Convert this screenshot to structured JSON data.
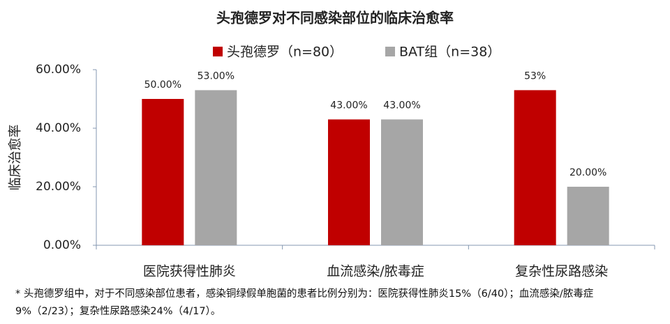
{
  "chart_data": {
    "type": "bar",
    "title": "头孢德罗对不同感染部位的临床治愈率",
    "ylabel": "临床治愈率",
    "categories": [
      "医院获得性肺炎",
      "血流感染/脓毒症",
      "复杂性尿路感染"
    ],
    "series": [
      {
        "name": "头孢德罗（n=80）",
        "color": "#c00000",
        "values": [
          50,
          43,
          53
        ],
        "value_labels": [
          "50.00%",
          "43.00%",
          "53%"
        ]
      },
      {
        "name": "BAT组（n=38）",
        "color": "#a6a6a6",
        "values": [
          53,
          43,
          20
        ],
        "value_labels": [
          "53.00%",
          "43.00%",
          "20.00%"
        ]
      }
    ],
    "ylim": [
      0,
      60
    ],
    "yticks": [
      {
        "value": 0,
        "label": "0.00%"
      },
      {
        "value": 20,
        "label": "20.00%"
      },
      {
        "value": 40,
        "label": "40.00%"
      },
      {
        "value": 60,
        "label": "60.00%"
      }
    ],
    "legend": "top",
    "footnote": "* 头孢德罗组中，对于不同感染部位患者，感染铜绿假单胞菌的患者比例分别为：医院获得性肺炎15%（6/40）；血流感染/脓毒症9%（2/23）；复杂性尿路感染24%（4/17）。"
  }
}
